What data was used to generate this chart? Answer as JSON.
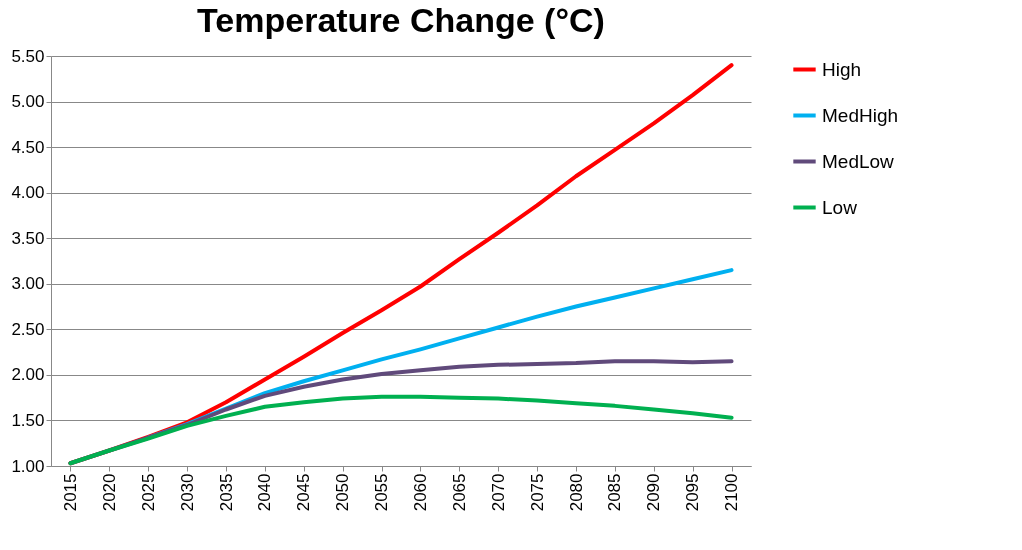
{
  "chart_data": {
    "type": "line",
    "title": "Temperature Change (°C)",
    "categories": [
      "2015",
      "2020",
      "2025",
      "2030",
      "2035",
      "2040",
      "2045",
      "2050",
      "2055",
      "2060",
      "2065",
      "2070",
      "2075",
      "2080",
      "2085",
      "2090",
      "2095",
      "2100"
    ],
    "series": [
      {
        "name": "High",
        "color": "#ff0000",
        "values": [
          1.03,
          1.17,
          1.32,
          1.48,
          1.7,
          1.95,
          2.2,
          2.46,
          2.71,
          2.97,
          3.27,
          3.56,
          3.86,
          4.18,
          4.47,
          4.76,
          5.07,
          5.4
        ]
      },
      {
        "name": "MedHigh",
        "color": "#00b0f0",
        "values": [
          null,
          null,
          1.31,
          1.46,
          1.63,
          1.8,
          1.93,
          2.05,
          2.17,
          2.28,
          2.4,
          2.52,
          2.64,
          2.75,
          2.85,
          2.95,
          3.05,
          3.15
        ]
      },
      {
        "name": "MedLow",
        "color": "#604a7b",
        "values": [
          1.03,
          1.17,
          1.31,
          1.45,
          1.62,
          1.77,
          1.87,
          1.95,
          2.01,
          2.05,
          2.09,
          2.11,
          2.12,
          2.13,
          2.15,
          2.15,
          2.14,
          2.15
        ]
      },
      {
        "name": "Low",
        "color": "#00b050",
        "values": [
          1.03,
          1.17,
          1.3,
          1.44,
          1.55,
          1.65,
          1.7,
          1.74,
          1.76,
          1.76,
          1.75,
          1.74,
          1.72,
          1.69,
          1.66,
          1.62,
          1.58,
          1.53
        ]
      }
    ],
    "ylim": [
      1,
      5.5
    ],
    "yticks": [
      {
        "value": 1,
        "label": "1.00"
      },
      {
        "value": 1.5,
        "label": "1.50"
      },
      {
        "value": 2,
        "label": "2.00"
      },
      {
        "value": 2.5,
        "label": "2.50"
      },
      {
        "value": 3,
        "label": "3.00"
      },
      {
        "value": 3.5,
        "label": "3.50"
      },
      {
        "value": 4,
        "label": "4.00"
      },
      {
        "value": 4.5,
        "label": "4.50"
      },
      {
        "value": 5,
        "label": "5.00"
      },
      {
        "value": 5.5,
        "label": "5.50"
      }
    ],
    "grid": "y",
    "legend": "right",
    "marker": "none",
    "line_style": "solid"
  }
}
